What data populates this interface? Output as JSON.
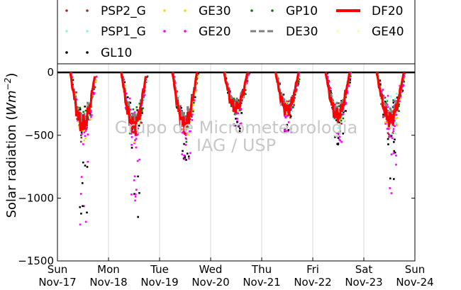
{
  "chart_data": {
    "type": "line",
    "ylabel_text": "Solar radiation (",
    "ylabel_unit_base": "Wm",
    "ylabel_unit_exp": "−2",
    "ylabel_close": ")",
    "ylim": [
      -1500,
      80
    ],
    "yticks": [
      0,
      -500,
      -1000,
      -1500
    ],
    "ytick_labels": [
      "0",
      "−500",
      "−1000",
      "−1500"
    ],
    "xlim": [
      0,
      7
    ],
    "xticks": [
      0,
      1,
      2,
      3,
      4,
      5,
      6,
      7
    ],
    "xtick_labels_day": [
      "Sun",
      "Mon",
      "Tue",
      "Wed",
      "Thu",
      "Fri",
      "Sat",
      "Sun"
    ],
    "xtick_labels_date": [
      "Nov-17",
      "Nov-18",
      "Nov-19",
      "Nov-20",
      "Nov-21",
      "Nov-22",
      "Nov-23",
      "Nov-24"
    ],
    "grid": true,
    "legend_placement": "top",
    "watermark_line1": "Grupo de Micrometeorologia",
    "watermark_line2": "IAG / USP",
    "legend": [
      {
        "name": "PSP2_G",
        "color": "#a52a2a",
        "style": "dots"
      },
      {
        "name": "GE30",
        "color": "#ffd700",
        "style": "dots"
      },
      {
        "name": "GP10",
        "color": "#008000",
        "style": "dots"
      },
      {
        "name": "DF20",
        "color": "#ff0000",
        "style": "line"
      },
      {
        "name": "PSP1_G",
        "color": "#7fffd4",
        "style": "dots"
      },
      {
        "name": "GE20",
        "color": "#ff00ff",
        "style": "dots"
      },
      {
        "name": "DE30",
        "color": "#808080",
        "style": "dash"
      },
      {
        "name": "GE40",
        "color": "#ffff99",
        "style": "dots"
      },
      {
        "name": "GL10",
        "color": "#000000",
        "style": "dots"
      }
    ],
    "days": [
      {
        "start": 0.25,
        "end": 0.74,
        "peak": -560,
        "spread": 220,
        "spike": -1230
      },
      {
        "start": 1.25,
        "end": 1.74,
        "peak": -570,
        "spread": 220,
        "spike": -1180
      },
      {
        "start": 2.25,
        "end": 2.73,
        "peak": -560,
        "spread": 120,
        "spike": -690
      },
      {
        "start": 3.26,
        "end": 3.72,
        "peak": -380,
        "spread": 70,
        "spike": -460
      },
      {
        "start": 4.27,
        "end": 4.72,
        "peak": -400,
        "spread": 90,
        "spike": -470
      },
      {
        "start": 5.25,
        "end": 5.72,
        "peak": -460,
        "spread": 120,
        "spike": -570
      },
      {
        "start": 6.25,
        "end": 6.78,
        "peak": -500,
        "spread": 300,
        "spike": -1000
      }
    ]
  }
}
